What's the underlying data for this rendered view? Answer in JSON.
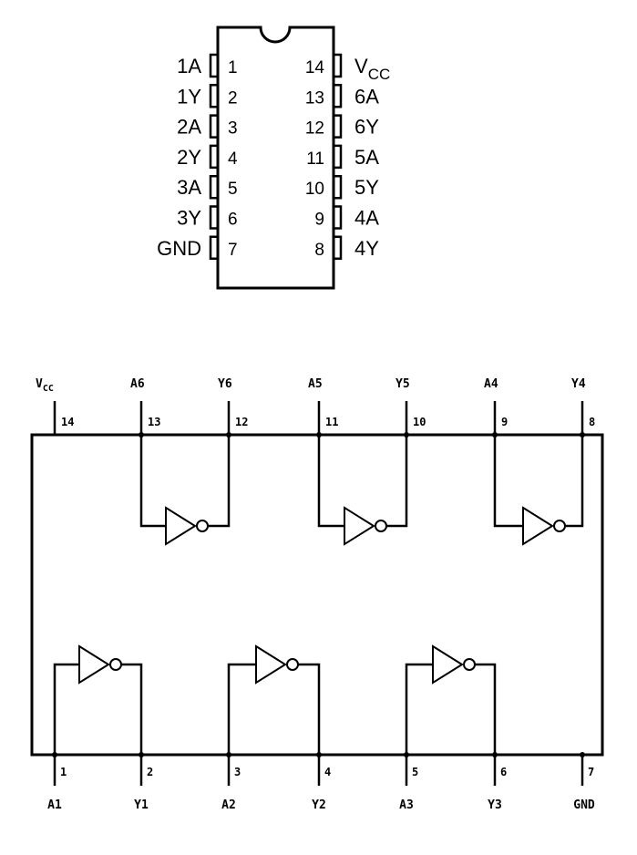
{
  "package": {
    "left_pins": [
      {
        "name": "1A",
        "num": "1"
      },
      {
        "name": "1Y",
        "num": "2"
      },
      {
        "name": "2A",
        "num": "3"
      },
      {
        "name": "2Y",
        "num": "4"
      },
      {
        "name": "3A",
        "num": "5"
      },
      {
        "name": "3Y",
        "num": "6"
      },
      {
        "name": "GND",
        "num": "7"
      }
    ],
    "right_pins": [
      {
        "name": "V",
        "sub": "CC",
        "num": "14"
      },
      {
        "name": "6A",
        "num": "13"
      },
      {
        "name": "6Y",
        "num": "12"
      },
      {
        "name": "5A",
        "num": "11"
      },
      {
        "name": "5Y",
        "num": "10"
      },
      {
        "name": "4A",
        "num": "9"
      },
      {
        "name": "4Y",
        "num": "8"
      }
    ]
  },
  "schematic": {
    "top_pins": [
      {
        "label": "V",
        "sub": "CC",
        "num": "14"
      },
      {
        "label": "A6",
        "num": "13"
      },
      {
        "label": "Y6",
        "num": "12"
      },
      {
        "label": "A5",
        "num": "11"
      },
      {
        "label": "Y5",
        "num": "10"
      },
      {
        "label": "A4",
        "num": "9"
      },
      {
        "label": "Y4",
        "num": "8"
      }
    ],
    "bottom_pins": [
      {
        "label": "A1",
        "num": "1"
      },
      {
        "label": "Y1",
        "num": "2"
      },
      {
        "label": "A2",
        "num": "3"
      },
      {
        "label": "Y2",
        "num": "4"
      },
      {
        "label": "A3",
        "num": "5"
      },
      {
        "label": "Y3",
        "num": "6"
      },
      {
        "label": "GND",
        "num": "7"
      }
    ]
  }
}
